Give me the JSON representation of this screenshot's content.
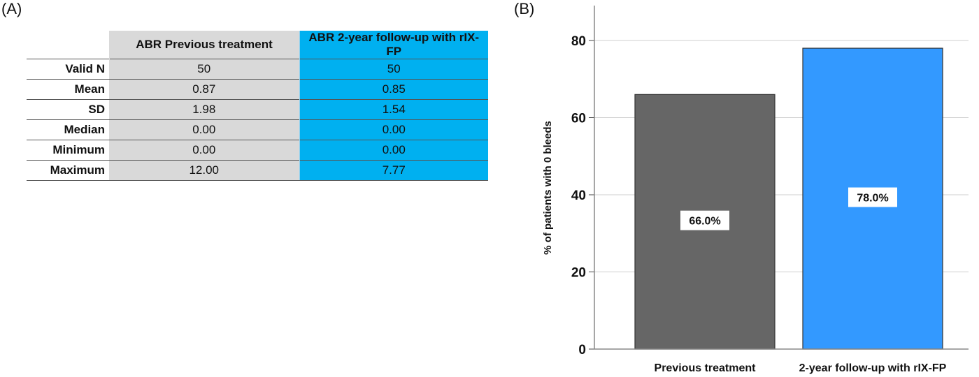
{
  "panels": {
    "a_label": "(A)",
    "b_label": "(B)"
  },
  "table": {
    "columns": [
      "ABR Previous treatment",
      "ABR 2-year follow-up with rIX-FP"
    ],
    "rows": [
      {
        "label": "Valid N",
        "previous": "50",
        "followup": "50"
      },
      {
        "label": "Mean",
        "previous": "0.87",
        "followup": "0.85"
      },
      {
        "label": "SD",
        "previous": "1.98",
        "followup": "1.54"
      },
      {
        "label": "Median",
        "previous": "0.00",
        "followup": "0.00"
      },
      {
        "label": "Minimum",
        "previous": "0.00",
        "followup": "0.00"
      },
      {
        "label": "Maximum",
        "previous": "12.00",
        "followup": "7.77"
      }
    ],
    "colors": {
      "previous": "#d9d9d9",
      "followup": "#00b0f0"
    }
  },
  "chart_data": {
    "type": "bar",
    "categories": [
      "Previous treatment",
      "2-year follow-up with rIX-FP"
    ],
    "values": [
      66.0,
      78.0
    ],
    "data_labels": [
      "66.0%",
      "78.0%"
    ],
    "colors": [
      "#666666",
      "#3399ff"
    ],
    "title": "",
    "xlabel": "",
    "ylabel": "% of patients with 0 bleeds",
    "ylim": [
      0,
      80
    ],
    "yticks": [
      0,
      20,
      40,
      60,
      80
    ],
    "grid": true
  }
}
